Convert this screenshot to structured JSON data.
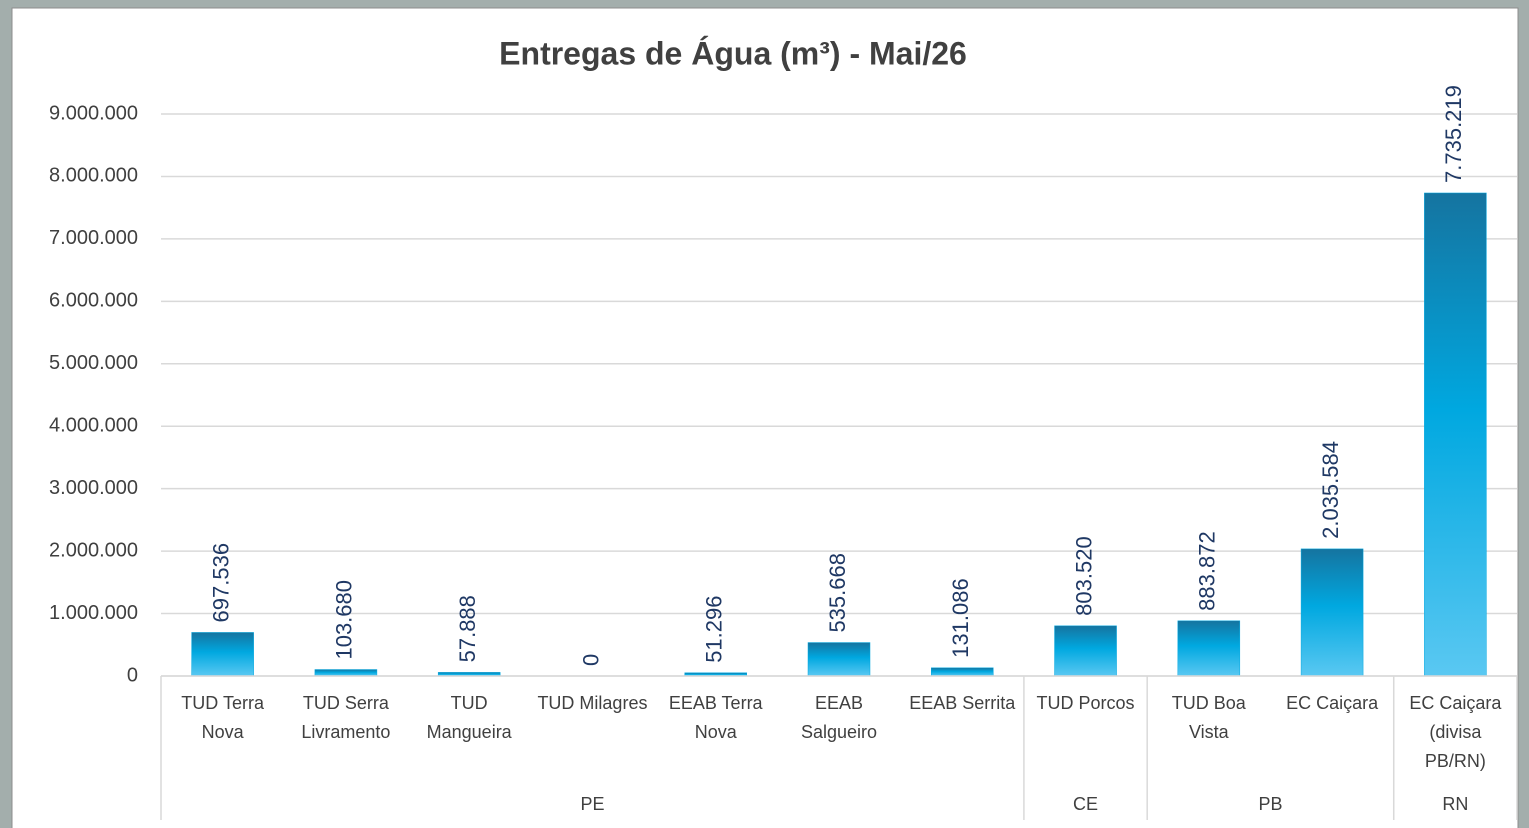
{
  "chart_data": {
    "type": "bar",
    "title": "Entregas de Água (m³) - Mai/26",
    "categories": [
      "TUD Terra Nova",
      "TUD Serra Livramento",
      "TUD Mangueira",
      "TUD Milagres",
      "EEAB Terra Nova",
      "EEAB Salgueiro",
      "EEAB Serrita",
      "TUD Porcos",
      "TUD Boa Vista",
      "EC Caiçara",
      "EC Caiçara (divisa PB/RN)"
    ],
    "category_groups": [
      "PE",
      "PE",
      "PE",
      "PE",
      "PE",
      "PE",
      "PE",
      "CE",
      "PB",
      "PB",
      "RN"
    ],
    "values": [
      697536,
      103680,
      57888,
      0,
      51296,
      535668,
      131086,
      803520,
      883872,
      2035584,
      7735219
    ],
    "value_labels": [
      "697.536",
      "103.680",
      "57.888",
      "0",
      "51.296",
      "535.668",
      "131.086",
      "803.520",
      "883.872",
      "2.035.584",
      "7.735.219"
    ],
    "color": "#00a8e0",
    "ylim": [
      0,
      9000000
    ],
    "yticks": [
      0,
      {
        "value": 1000000,
        "label": "1.000.000"
      },
      {
        "value": 2000000,
        "label": "2.000.000"
      },
      {
        "value": 3000000,
        "label": "3.000.000"
      },
      {
        "value": 4000000,
        "label": "4.000.000"
      },
      {
        "value": 5000000,
        "label": "5.000.000"
      },
      {
        "value": 6000000,
        "label": "6.000.000"
      },
      {
        "value": 7000000,
        "label": "7.000.000"
      },
      {
        "value": 8000000,
        "label": "8.000.000"
      },
      {
        "value": 9000000,
        "label": "9.000.000"
      }
    ],
    "grid": true
  }
}
